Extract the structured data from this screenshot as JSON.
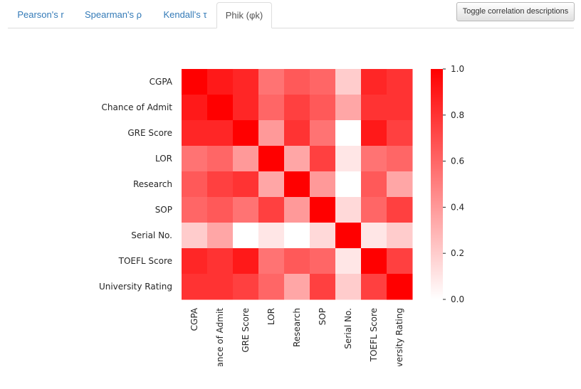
{
  "tabs": [
    {
      "label": "Pearson's r"
    },
    {
      "label": "Spearman's ρ"
    },
    {
      "label": "Kendall's τ"
    },
    {
      "label": "Phik (φk)"
    }
  ],
  "active_tab": "Phik (φk)",
  "toggle_button": {
    "label": "Toggle correlation descriptions"
  },
  "chart_data": {
    "type": "heatmap",
    "title": "",
    "rows": [
      "CGPA",
      "Chance of Admit ",
      "GRE Score",
      "LOR ",
      "Research",
      "SOP",
      "Serial No.",
      "TOEFL Score",
      "University Rating"
    ],
    "columns": [
      "CGPA",
      "Chance of Admit ",
      "GRE Score",
      "LOR ",
      "Research",
      "SOP",
      "Serial No.",
      "TOEFL Score",
      "University Rating"
    ],
    "values": [
      [
        1.0,
        0.9,
        0.85,
        0.55,
        0.65,
        0.6,
        0.2,
        0.85,
        0.8
      ],
      [
        0.9,
        1.0,
        0.85,
        0.6,
        0.75,
        0.65,
        0.35,
        0.8,
        0.8
      ],
      [
        0.85,
        0.85,
        1.0,
        0.4,
        0.8,
        0.55,
        0.0,
        0.9,
        0.75
      ],
      [
        0.55,
        0.6,
        0.4,
        1.0,
        0.35,
        0.75,
        0.1,
        0.55,
        0.6
      ],
      [
        0.65,
        0.75,
        0.8,
        0.35,
        1.0,
        0.4,
        0.0,
        0.65,
        0.35
      ],
      [
        0.6,
        0.65,
        0.55,
        0.75,
        0.4,
        1.0,
        0.15,
        0.6,
        0.75
      ],
      [
        0.2,
        0.35,
        0.0,
        0.1,
        0.0,
        0.15,
        1.0,
        0.1,
        0.2
      ],
      [
        0.85,
        0.8,
        0.9,
        0.55,
        0.65,
        0.6,
        0.1,
        1.0,
        0.75
      ],
      [
        0.8,
        0.8,
        0.75,
        0.6,
        0.35,
        0.75,
        0.2,
        0.75,
        1.0
      ]
    ],
    "colorbar": {
      "min": 0.0,
      "max": 1.0,
      "ticks": [
        "0.0",
        "0.2",
        "0.4",
        "0.6",
        "0.8",
        "1.0"
      ]
    },
    "colors": {
      "low": "#ffffff",
      "high": "#ff0000"
    }
  }
}
